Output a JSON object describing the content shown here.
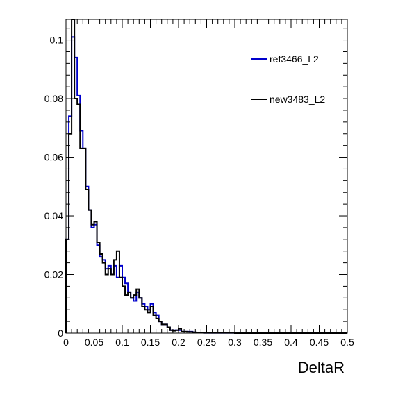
{
  "chart_data": {
    "type": "line",
    "subtype": "step-histogram",
    "title": "",
    "xlabel": "DeltaR",
    "ylabel": "",
    "xlim": [
      0,
      0.5
    ],
    "ylim": [
      0,
      0.107
    ],
    "grid": false,
    "legend_position": "top-right",
    "bin_width": 0.005,
    "x_ticks": [
      0,
      0.05,
      0.1,
      0.15,
      0.2,
      0.25,
      0.3,
      0.35,
      0.4,
      0.45,
      0.5
    ],
    "x_tick_labels": [
      "0",
      "0.05",
      "0.1",
      "0.15",
      "0.2",
      "0.25",
      "0.3",
      "0.35",
      "0.4",
      "0.45",
      "0.5"
    ],
    "y_ticks": [
      0,
      0.02,
      0.04,
      0.06,
      0.08,
      0.1
    ],
    "y_tick_labels": [
      "0",
      "0.02",
      "0.04",
      "0.06",
      "0.08",
      "0.1"
    ],
    "series": [
      {
        "name": "ref3466_L2",
        "color": "#0000cc",
        "values": [
          0.032,
          0.074,
          0.101,
          0.094,
          0.081,
          0.069,
          0.063,
          0.05,
          0.042,
          0.036,
          0.037,
          0.03,
          0.026,
          0.025,
          0.022,
          0.023,
          0.02,
          0.023,
          0.019,
          0.023,
          0.019,
          0.017,
          0.014,
          0.012,
          0.011,
          0.014,
          0.012,
          0.01,
          0.009,
          0.008,
          0.01,
          0.007,
          0.006,
          0.004,
          0.003,
          0.003,
          0.002,
          0.001,
          0.001,
          0.001,
          0.001,
          0.0005,
          0.0005,
          0.0005,
          0.0005,
          0.0003,
          0.0002,
          0.0002,
          0.0002,
          0.0001,
          0.0001,
          0.0001,
          0.0001,
          0.0001,
          0.0001,
          0.0001,
          0.0001,
          0.0001,
          0.0001,
          0.0001,
          0,
          0,
          0,
          0,
          0,
          0,
          0,
          0,
          0,
          0,
          0,
          0,
          0,
          0,
          0,
          0,
          0,
          0,
          0,
          0,
          0,
          0,
          0,
          0,
          0,
          0,
          0,
          0,
          0,
          0,
          0,
          0,
          0,
          0,
          0,
          0,
          0,
          0,
          0,
          0
        ]
      },
      {
        "name": "new3483_L2",
        "color": "#000000",
        "values": [
          0.032,
          0.068,
          0.107,
          0.08,
          0.078,
          0.063,
          0.063,
          0.049,
          0.042,
          0.037,
          0.038,
          0.031,
          0.027,
          0.024,
          0.02,
          0.022,
          0.02,
          0.025,
          0.028,
          0.019,
          0.016,
          0.013,
          0.014,
          0.012,
          0.013,
          0.015,
          0.012,
          0.009,
          0.008,
          0.007,
          0.009,
          0.006,
          0.005,
          0.004,
          0.003,
          0.003,
          0.002,
          0.001,
          0.0008,
          0.001,
          0.0015,
          0.0005,
          0.0005,
          0.0004,
          0.0004,
          0.0003,
          0.0002,
          0.0002,
          0.0002,
          0.0001,
          0.0001,
          0.0001,
          0.0001,
          0.0001,
          0.0001,
          0.0001,
          0.0001,
          0.0001,
          0.0001,
          0.0001,
          0,
          0,
          0,
          0,
          0,
          0,
          0,
          0,
          0,
          0,
          0,
          0,
          0,
          0,
          0,
          0,
          0,
          0,
          0,
          0,
          0,
          0,
          0,
          0,
          0,
          0,
          0,
          0,
          0,
          0,
          0,
          0,
          0,
          0,
          0,
          0,
          0,
          0,
          0,
          0
        ]
      }
    ]
  }
}
